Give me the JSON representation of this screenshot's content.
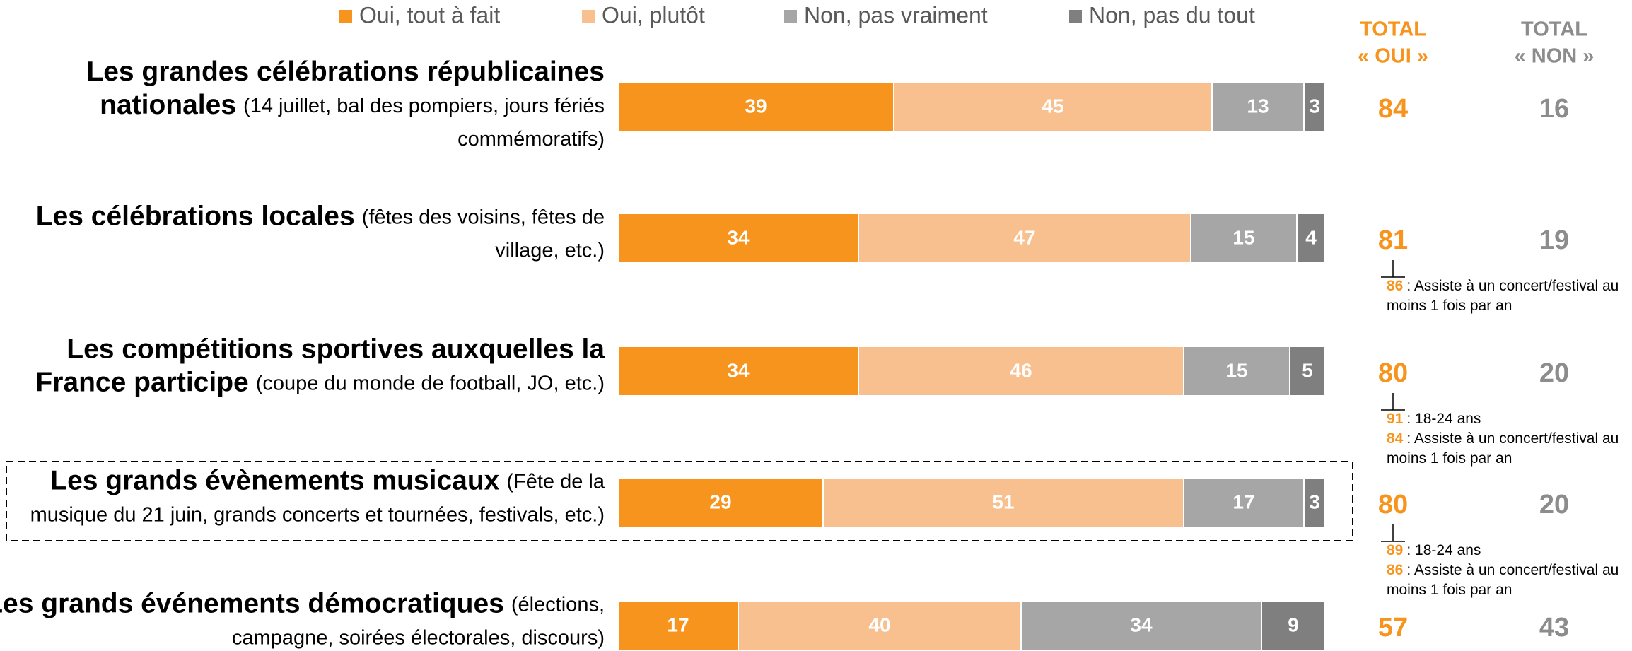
{
  "chart_data": {
    "type": "stacked-bar-horizontal",
    "xlim": [
      0,
      100
    ],
    "categories": [
      [
        {
          "bold": "Les grandes célébrations républicaines"
        },
        {
          "bold": "nationales",
          "text": "(14 juillet, bal des pompiers, jours fériés"
        },
        {
          "text": "commémoratifs)"
        }
      ],
      [
        {
          "bold": "Les célébrations locales",
          "text": "(fêtes des voisins, fêtes de"
        },
        {
          "text": "village, etc.)"
        }
      ],
      [
        {
          "bold": "Les compétitions sportives auxquelles la"
        },
        {
          "bold": "France participe",
          "text": "(coupe du monde de football, JO, etc.)"
        }
      ],
      [
        {
          "bold": "Les grands évènements musicaux",
          "text": "(Fête de la"
        },
        {
          "text": "musique du 21 juin, grands concerts et tournées, festivals, etc.)"
        }
      ],
      [
        {
          "bold": "Les grands événements démocratiques",
          "text": "(élections,"
        },
        {
          "text": "campagne, soirées électorales, discours)"
        }
      ]
    ],
    "series": [
      {
        "name": "Oui, tout à fait",
        "color": "#f7941d",
        "values": [
          39,
          34,
          34,
          29,
          17
        ]
      },
      {
        "name": "Oui, plutôt",
        "color": "#f9c08f",
        "values": [
          45,
          47,
          46,
          51,
          40
        ]
      },
      {
        "name": "Non, pas vraiment",
        "color": "#a6a6a6",
        "values": [
          13,
          15,
          15,
          17,
          34
        ]
      },
      {
        "name": "Non, pas du tout",
        "color": "#7f7f7f",
        "values": [
          3,
          4,
          5,
          3,
          9
        ]
      }
    ],
    "totals": [
      {
        "header": [
          "TOTAL",
          "« OUI »"
        ],
        "color": "#f7941d",
        "values": [
          84,
          81,
          80,
          80,
          57
        ]
      },
      {
        "header": [
          "TOTAL",
          "« NON »"
        ],
        "color": "#8c8c8c",
        "values": [
          16,
          19,
          20,
          20,
          43
        ]
      }
    ],
    "notes": [
      [],
      [
        {
          "value": 86,
          "lines": [
            ": Assiste à un concert/festival au",
            "moins 1 fois par an"
          ]
        }
      ],
      [
        {
          "value": 91,
          "lines": [
            ": 18-24 ans"
          ]
        },
        {
          "value": 84,
          "lines": [
            ": Assiste à un concert/festival au",
            "moins 1 fois par an"
          ]
        }
      ],
      [
        {
          "value": 89,
          "lines": [
            ": 18-24 ans"
          ]
        },
        {
          "value": 86,
          "lines": [
            ": Assiste à un concert/festival au",
            "moins 1 fois par an"
          ]
        }
      ],
      []
    ],
    "highlight": 3
  }
}
